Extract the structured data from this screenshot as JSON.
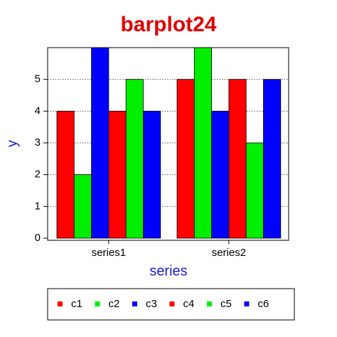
{
  "chart_data": {
    "type": "bar",
    "title": "barplot24",
    "x_label": "series",
    "y_label": "y",
    "categories": [
      "series1",
      "series2"
    ],
    "series": [
      {
        "name": "c1",
        "color": "#ff0000",
        "values": [
          4,
          5
        ]
      },
      {
        "name": "c2",
        "color": "#00ee00",
        "values": [
          2,
          6
        ]
      },
      {
        "name": "c3",
        "color": "#0000ff",
        "values": [
          6,
          4
        ]
      },
      {
        "name": "c4",
        "color": "#ff0000",
        "values": [
          4,
          5
        ]
      },
      {
        "name": "c5",
        "color": "#00ee00",
        "values": [
          5,
          3
        ]
      },
      {
        "name": "c6",
        "color": "#0000ff",
        "values": [
          4,
          5
        ]
      }
    ],
    "ylim": [
      0,
      6
    ],
    "yticks": [
      0,
      1,
      2,
      3,
      4,
      5
    ],
    "grid": true,
    "legend": "bottom"
  }
}
